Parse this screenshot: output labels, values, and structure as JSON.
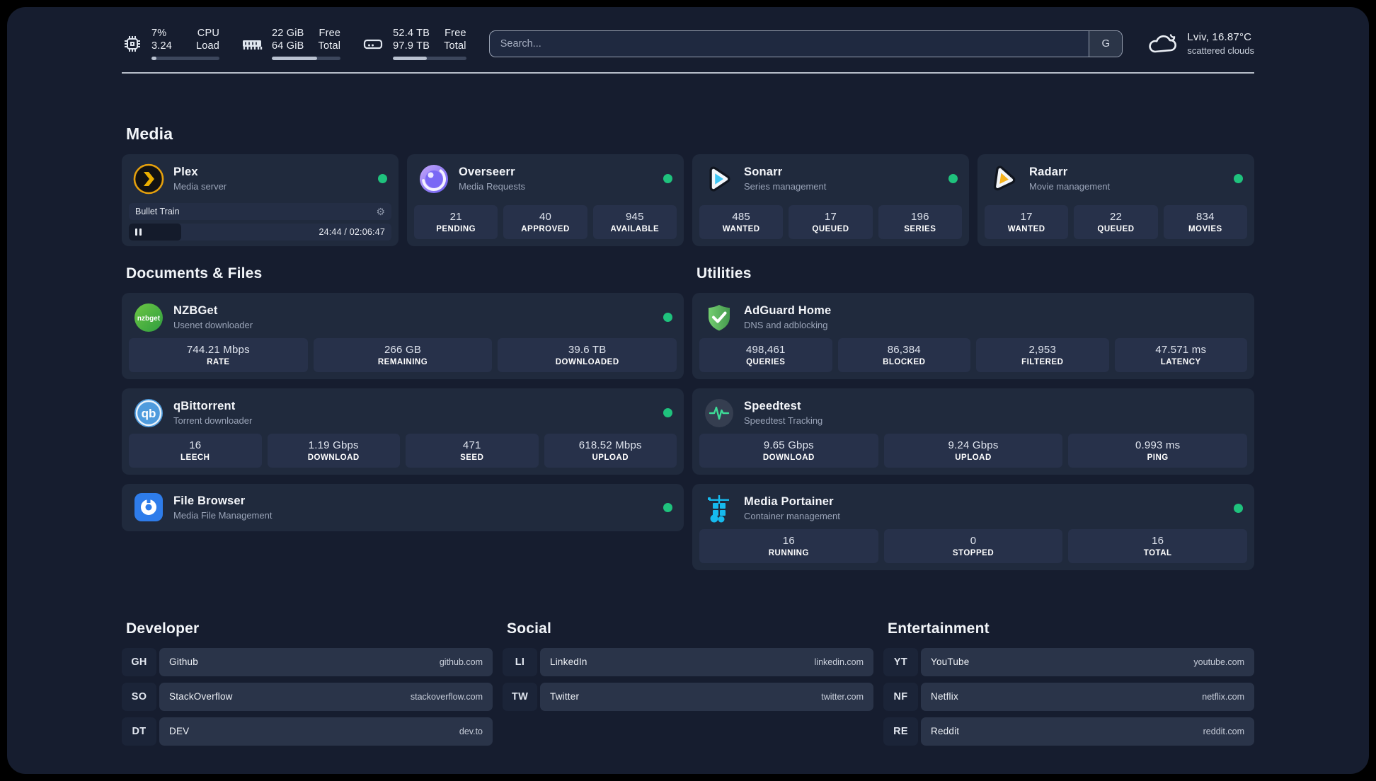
{
  "theme": {
    "background": "#161d2f",
    "card": "#202a3d",
    "tile": "#27314a",
    "status_green": "#1fc27d",
    "plex_gold": "#ebaf00",
    "sonarr_blue": "#3ec6f4",
    "radarr_amber": "#f6b21d",
    "adguard_green": "#67c662",
    "portainer_cyan": "#16baee"
  },
  "header": {
    "metrics": [
      {
        "icon": "cpu-icon",
        "values": [
          "7%",
          "3.24"
        ],
        "labels": [
          "CPU",
          "Load"
        ],
        "progress_pct": 7
      },
      {
        "icon": "ram-icon",
        "values": [
          "22 GiB",
          "64 GiB"
        ],
        "labels": [
          "Free",
          "Total"
        ],
        "progress_pct": 66
      },
      {
        "icon": "disk-icon",
        "values": [
          "52.4 TB",
          "97.9 TB"
        ],
        "labels": [
          "Free",
          "Total"
        ],
        "progress_pct": 46
      }
    ],
    "search": {
      "placeholder": "Search...",
      "button_label": "G"
    },
    "weather": {
      "icon": "cloud-icon",
      "location": "Lviv, 16.87°C",
      "condition": "scattered clouds"
    }
  },
  "sections": {
    "media": {
      "title": "Media",
      "apps": [
        {
          "name": "Plex",
          "subtitle": "Media server",
          "icon": "plex-icon",
          "online": true,
          "player": {
            "title": "Bullet Train",
            "time": "24:44 / 02:06:47",
            "progress_pct": 20,
            "controls": [
              "pause-icon",
              "gear-icon"
            ]
          }
        },
        {
          "name": "Overseerr",
          "subtitle": "Media Requests",
          "icon": "overseerr-icon",
          "online": true,
          "stats": [
            {
              "value": "21",
              "label": "PENDING"
            },
            {
              "value": "40",
              "label": "APPROVED"
            },
            {
              "value": "945",
              "label": "AVAILABLE"
            }
          ]
        },
        {
          "name": "Sonarr",
          "subtitle": "Series management",
          "icon": "sonarr-icon",
          "online": true,
          "stats": [
            {
              "value": "485",
              "label": "WANTED"
            },
            {
              "value": "17",
              "label": "QUEUED"
            },
            {
              "value": "196",
              "label": "SERIES"
            }
          ]
        },
        {
          "name": "Radarr",
          "subtitle": "Movie management",
          "icon": "radarr-icon",
          "online": true,
          "stats": [
            {
              "value": "17",
              "label": "WANTED"
            },
            {
              "value": "22",
              "label": "QUEUED"
            },
            {
              "value": "834",
              "label": "MOVIES"
            }
          ]
        }
      ]
    },
    "documents": {
      "title": "Documents & Files",
      "apps": [
        {
          "name": "NZBGet",
          "subtitle": "Usenet downloader",
          "icon": "nzbget-icon",
          "online": true,
          "stats": [
            {
              "value": "744.21 Mbps",
              "label": "RATE"
            },
            {
              "value": "266 GB",
              "label": "REMAINING"
            },
            {
              "value": "39.6 TB",
              "label": "DOWNLOADED"
            }
          ]
        },
        {
          "name": "qBittorrent",
          "subtitle": "Torrent downloader",
          "icon": "qbittorrent-icon",
          "online": true,
          "stats": [
            {
              "value": "16",
              "label": "LEECH"
            },
            {
              "value": "1.19 Gbps",
              "label": "DOWNLOAD"
            },
            {
              "value": "471",
              "label": "SEED"
            },
            {
              "value": "618.52 Mbps",
              "label": "UPLOAD"
            }
          ]
        },
        {
          "name": "File Browser",
          "subtitle": "Media File Management",
          "icon": "filebrowser-icon",
          "online": true,
          "stats": []
        }
      ]
    },
    "utilities": {
      "title": "Utilities",
      "apps": [
        {
          "name": "AdGuard Home",
          "subtitle": "DNS and adblocking",
          "icon": "adguard-icon",
          "online": false,
          "stats": [
            {
              "value": "498,461",
              "label": "QUERIES"
            },
            {
              "value": "86,384",
              "label": "BLOCKED"
            },
            {
              "value": "2,953",
              "label": "FILTERED"
            },
            {
              "value": "47.571 ms",
              "label": "LATENCY"
            }
          ]
        },
        {
          "name": "Speedtest",
          "subtitle": "Speedtest Tracking",
          "icon": "speedtest-icon",
          "online": false,
          "stats": [
            {
              "value": "9.65 Gbps",
              "label": "DOWNLOAD"
            },
            {
              "value": "9.24 Gbps",
              "label": "UPLOAD"
            },
            {
              "value": "0.993 ms",
              "label": "PING"
            }
          ]
        },
        {
          "name": "Media Portainer",
          "subtitle": "Container management",
          "icon": "portainer-icon",
          "online": true,
          "stats": [
            {
              "value": "16",
              "label": "RUNNING"
            },
            {
              "value": "0",
              "label": "STOPPED"
            },
            {
              "value": "16",
              "label": "TOTAL"
            }
          ]
        }
      ]
    }
  },
  "links": [
    {
      "title": "Developer",
      "items": [
        {
          "abbr": "GH",
          "name": "Github",
          "url": "github.com"
        },
        {
          "abbr": "SO",
          "name": "StackOverflow",
          "url": "stackoverflow.com"
        },
        {
          "abbr": "DT",
          "name": "DEV",
          "url": "dev.to"
        }
      ]
    },
    {
      "title": "Social",
      "items": [
        {
          "abbr": "LI",
          "name": "LinkedIn",
          "url": "linkedin.com"
        },
        {
          "abbr": "TW",
          "name": "Twitter",
          "url": "twitter.com"
        }
      ]
    },
    {
      "title": "Entertainment",
      "items": [
        {
          "abbr": "YT",
          "name": "YouTube",
          "url": "youtube.com"
        },
        {
          "abbr": "NF",
          "name": "Netflix",
          "url": "netflix.com"
        },
        {
          "abbr": "RE",
          "name": "Reddit",
          "url": "reddit.com"
        }
      ]
    }
  ]
}
